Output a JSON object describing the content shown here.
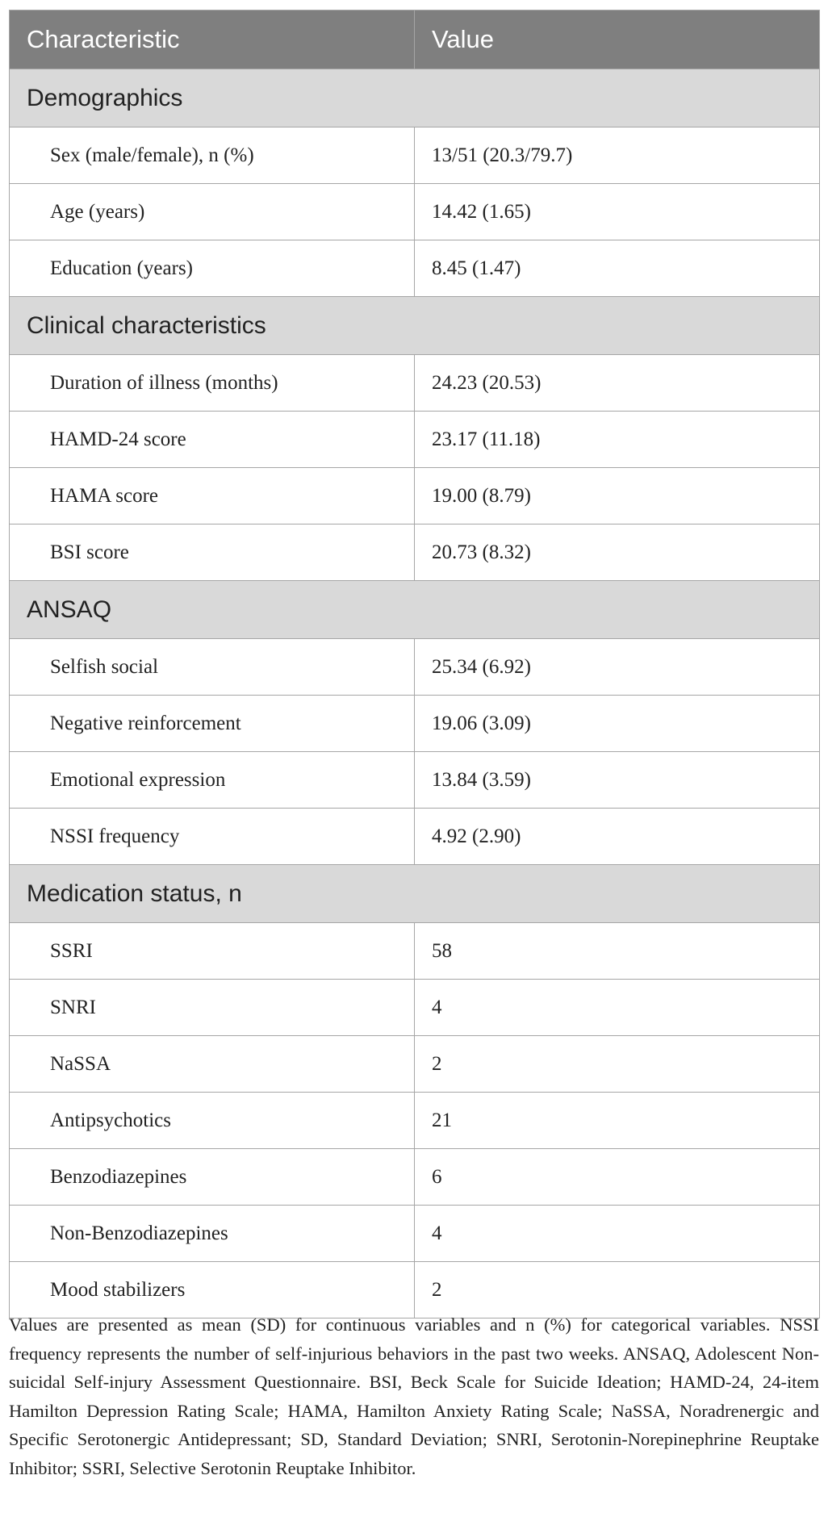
{
  "table": {
    "header": [
      "Characteristic",
      "Value"
    ],
    "sections": [
      {
        "title": "Demographics",
        "rows": [
          [
            "Sex (male/female), n (%)",
            "13/51 (20.3/79.7)"
          ],
          [
            "Age (years)",
            "14.42 (1.65)"
          ],
          [
            "Education (years)",
            "8.45 (1.47)"
          ]
        ]
      },
      {
        "title": "Clinical characteristics",
        "rows": [
          [
            "Duration of illness (months)",
            "24.23 (20.53)"
          ],
          [
            "HAMD-24 score",
            "23.17 (11.18)"
          ],
          [
            "HAMA score",
            "19.00 (8.79)"
          ],
          [
            "BSI score",
            "20.73 (8.32)"
          ]
        ]
      },
      {
        "title": "ANSAQ",
        "rows": [
          [
            "Selfish social",
            "25.34 (6.92)"
          ],
          [
            "Negative reinforcement",
            "19.06 (3.09)"
          ],
          [
            "Emotional expression",
            "13.84 (3.59)"
          ],
          [
            "NSSI frequency",
            "4.92 (2.90)"
          ]
        ]
      },
      {
        "title": "Medication status, n",
        "rows": [
          [
            "SSRI",
            "58"
          ],
          [
            "SNRI",
            "4"
          ],
          [
            "NaSSA",
            "2"
          ],
          [
            "Antipsychotics",
            "21"
          ],
          [
            "Benzodiazepines",
            "6"
          ],
          [
            "Non-Benzodiazepines",
            "4"
          ],
          [
            "Mood stabilizers",
            "2"
          ]
        ]
      }
    ],
    "footnote": "Values are presented as mean (SD) for continuous variables and n (%) for categorical variables. NSSI frequency represents the number of self-injurious behaviors in the past two weeks. ANSAQ, Adolescent Non-suicidal Self-injury Assessment Questionnaire. BSI, Beck Scale for Suicide Ideation; HAMD-24, 24-item Hamilton Depression Rating Scale; HAMA, Hamilton Anxiety Rating Scale; NaSSA, Noradrenergic and Specific Serotonergic Antidepressant; SD, Standard Deviation; SNRI, Serotonin-Norepinephrine Reuptake Inhibitor; SSRI, Selective Serotonin Reuptake Inhibitor."
  }
}
